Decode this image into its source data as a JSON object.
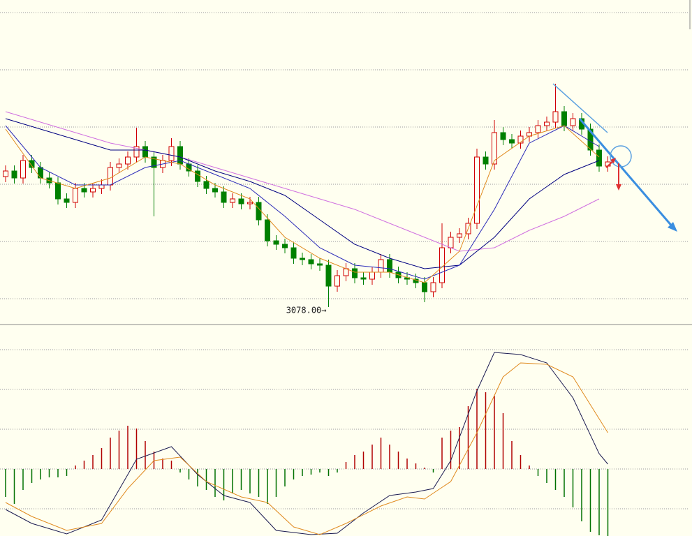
{
  "chart_data": [
    {
      "type": "candlestick",
      "annotation": "3078.00→",
      "ylim": [
        3053,
        3518
      ],
      "yticks": [
        3090,
        3172,
        3254,
        3336,
        3418,
        3500
      ],
      "grid": true,
      "up_color": "#d00000",
      "down_color": "#008000",
      "open": [
        3265,
        3273,
        3263,
        3288,
        3278,
        3263,
        3256,
        3233,
        3228,
        3248,
        3243,
        3248,
        3253,
        3278,
        3283,
        3293,
        3308,
        3293,
        3278,
        3288,
        3308,
        3283,
        3273,
        3258,
        3248,
        3243,
        3228,
        3233,
        3226,
        3228,
        3203,
        3173,
        3168,
        3163,
        3148,
        3146,
        3140,
        3138,
        3108,
        3123,
        3133,
        3120,
        3118,
        3128,
        3146,
        3128,
        3120,
        3118,
        3113,
        3100,
        3113,
        3163,
        3178,
        3183,
        3198,
        3293,
        3283,
        3328,
        3318,
        3313,
        3323,
        3328,
        3338,
        3343,
        3358,
        3338,
        3348,
        3333,
        3303,
        3280
      ],
      "high": [
        3281,
        3281,
        3296,
        3296,
        3286,
        3271,
        3264,
        3241,
        3256,
        3256,
        3256,
        3261,
        3286,
        3291,
        3301,
        3335,
        3316,
        3301,
        3296,
        3320,
        3316,
        3291,
        3281,
        3266,
        3256,
        3251,
        3241,
        3241,
        3236,
        3236,
        3211,
        3181,
        3176,
        3171,
        3156,
        3154,
        3148,
        3146,
        3131,
        3141,
        3141,
        3128,
        3136,
        3154,
        3154,
        3136,
        3128,
        3126,
        3121,
        3121,
        3198,
        3186,
        3191,
        3206,
        3305,
        3301,
        3346,
        3336,
        3326,
        3331,
        3336,
        3346,
        3351,
        3398,
        3366,
        3356,
        3356,
        3341,
        3311,
        3294
      ],
      "low": [
        3257,
        3255,
        3255,
        3270,
        3255,
        3248,
        3225,
        3220,
        3220,
        3235,
        3235,
        3240,
        3245,
        3270,
        3275,
        3285,
        3285,
        3208,
        3270,
        3280,
        3275,
        3265,
        3250,
        3240,
        3235,
        3220,
        3220,
        3218,
        3218,
        3195,
        3165,
        3160,
        3155,
        3140,
        3138,
        3132,
        3130,
        3078,
        3100,
        3115,
        3112,
        3110,
        3110,
        3120,
        3120,
        3112,
        3110,
        3105,
        3085,
        3092,
        3105,
        3155,
        3170,
        3175,
        3190,
        3275,
        3275,
        3310,
        3305,
        3305,
        3315,
        3320,
        3330,
        3335,
        3330,
        3330,
        3325,
        3295,
        3272,
        3272
      ],
      "close": [
        3273,
        3263,
        3288,
        3278,
        3263,
        3256,
        3233,
        3228,
        3248,
        3243,
        3248,
        3253,
        3278,
        3283,
        3293,
        3308,
        3293,
        3278,
        3288,
        3308,
        3283,
        3273,
        3258,
        3248,
        3243,
        3228,
        3233,
        3226,
        3228,
        3203,
        3173,
        3168,
        3163,
        3148,
        3146,
        3140,
        3138,
        3108,
        3123,
        3133,
        3120,
        3118,
        3128,
        3146,
        3128,
        3120,
        3118,
        3113,
        3100,
        3113,
        3163,
        3178,
        3183,
        3198,
        3293,
        3283,
        3328,
        3318,
        3313,
        3323,
        3328,
        3338,
        3343,
        3358,
        3338,
        3348,
        3333,
        3303,
        3280,
        3286
      ],
      "lines": [
        {
          "color": "#d070e0",
          "x": [
            0,
            4,
            8,
            12,
            16,
            20,
            24,
            28,
            32,
            36,
            40,
            44,
            48,
            52,
            56,
            60,
            64,
            68
          ],
          "values": [
            3358,
            3343,
            3328,
            3313,
            3303,
            3293,
            3278,
            3263,
            3248,
            3233,
            3218,
            3198,
            3178,
            3158,
            3163,
            3188,
            3208,
            3233
          ]
        },
        {
          "color": "#000080",
          "x": [
            0,
            4,
            8,
            12,
            16,
            20,
            24,
            28,
            32,
            36,
            40,
            44,
            48,
            52,
            56,
            60,
            64,
            68
          ],
          "values": [
            3348,
            3333,
            3318,
            3303,
            3303,
            3293,
            3273,
            3258,
            3238,
            3203,
            3168,
            3148,
            3133,
            3138,
            3178,
            3233,
            3268,
            3288
          ]
        },
        {
          "color": "#2a2ab8",
          "x": [
            0,
            4,
            8,
            12,
            16,
            20,
            24,
            28,
            32,
            36,
            40,
            44,
            48,
            52,
            56,
            60,
            64,
            68
          ],
          "values": [
            3338,
            3278,
            3253,
            3253,
            3278,
            3288,
            3268,
            3248,
            3208,
            3163,
            3138,
            3133,
            3118,
            3138,
            3218,
            3313,
            3338,
            3308
          ]
        },
        {
          "color": "#e08a1e",
          "x": [
            0,
            4,
            8,
            12,
            16,
            20,
            24,
            28,
            32,
            36,
            40,
            44,
            48,
            52,
            56,
            60,
            64,
            68
          ],
          "values": [
            3333,
            3263,
            3248,
            3263,
            3293,
            3283,
            3253,
            3233,
            3178,
            3148,
            3128,
            3128,
            3113,
            3158,
            3288,
            3323,
            3338,
            3293
          ]
        }
      ]
    },
    {
      "type": "macd",
      "ylim": [
        -48,
        103.5
      ],
      "yticks": [
        -28.5,
        0,
        28.5,
        57,
        85.5
      ],
      "grid": true,
      "pos_color": "#b00000",
      "neg_color": "#007000",
      "values": [
        -20,
        -25,
        -15,
        -10,
        -7.5,
        -6,
        -6,
        -5,
        2.5,
        6,
        10,
        15,
        22.5,
        27.5,
        31,
        29,
        20,
        12.5,
        7.5,
        6,
        -2.5,
        -7.5,
        -12.5,
        -15,
        -20,
        -22.5,
        -17.5,
        -15,
        -17.5,
        -20,
        -25,
        -20,
        -12.5,
        -7.5,
        -5,
        -4,
        -2.5,
        -5,
        -2.5,
        5,
        10,
        12.5,
        17.5,
        22.5,
        17.5,
        12.5,
        7.5,
        4,
        1,
        -2.5,
        22.5,
        27.5,
        30,
        45,
        57.5,
        55,
        52.5,
        40,
        20,
        10,
        2.5,
        -5,
        -10,
        -15,
        -20,
        -27.5,
        -37.5,
        -45,
        -47.5,
        -50
      ],
      "lines": [
        {
          "color": "#1a1a50",
          "x": [
            0,
            3,
            7,
            11,
            14,
            15,
            19,
            22,
            25,
            28,
            31,
            35,
            38,
            41,
            44,
            47,
            49,
            51,
            54,
            56,
            59,
            62,
            65,
            68,
            69
          ],
          "values": [
            -29,
            -39,
            -46.5,
            -36.5,
            -4,
            7,
            16,
            -4,
            -19,
            -24,
            -44,
            -47,
            -46,
            -31.5,
            -19,
            -16.5,
            -14,
            6,
            56,
            83.5,
            82,
            76,
            51,
            11,
            3.5
          ]
        },
        {
          "color": "#e08a1e",
          "x": [
            0,
            3,
            7,
            11,
            14,
            17,
            20,
            23,
            27,
            30,
            33,
            36,
            39,
            43,
            46,
            48,
            51,
            54,
            57,
            59,
            62,
            65,
            68,
            69
          ],
          "values": [
            -24,
            -34,
            -44,
            -39,
            -14,
            6,
            8.5,
            -9,
            -20,
            -24,
            -41.5,
            -47,
            -39,
            -26.5,
            -20,
            -21.5,
            -9,
            26,
            66,
            76,
            75,
            66,
            36,
            26
          ]
        }
      ]
    }
  ]
}
